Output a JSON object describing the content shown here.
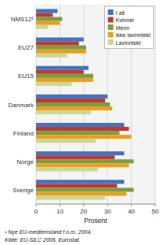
{
  "chart_data": {
    "type": "bar",
    "orientation": "horizontal",
    "categories": [
      "NMS12¹",
      "EU27",
      "EU15",
      "Danmark",
      "Finland",
      "Norge",
      "Sverige"
    ],
    "series": [
      {
        "name": "I alt",
        "color": "#4472C4",
        "values": [
          9,
          20,
          22,
          30,
          37,
          37,
          37
        ]
      },
      {
        "name": "Kvinner",
        "color": "#C0392B",
        "values": [
          7,
          18,
          20,
          29,
          39,
          33,
          34
        ]
      },
      {
        "name": "Menn",
        "color": "#7B9E3E",
        "values": [
          11,
          21,
          24,
          31,
          35,
          41,
          41
        ]
      },
      {
        "name": "Ikke lavinntekt",
        "color": "#E8A020",
        "values": [
          10,
          21,
          24,
          32,
          40,
          39,
          38
        ]
      },
      {
        "name": "Lavinntekt",
        "color": "#C8D89A",
        "values": [
          5,
          13,
          15,
          23,
          25,
          26,
          29
        ]
      }
    ],
    "xlabel": "Prosent",
    "xlim": [
      0,
      50
    ],
    "xticks": [
      0,
      10,
      20,
      30,
      40,
      50
    ],
    "grid": true,
    "legend": "upper right",
    "annotations": [
      "¹ Nye EU-medlemsland f.o.m. 2004.",
      "Kilde: EU-SILC 2006. Eurostat."
    ]
  }
}
